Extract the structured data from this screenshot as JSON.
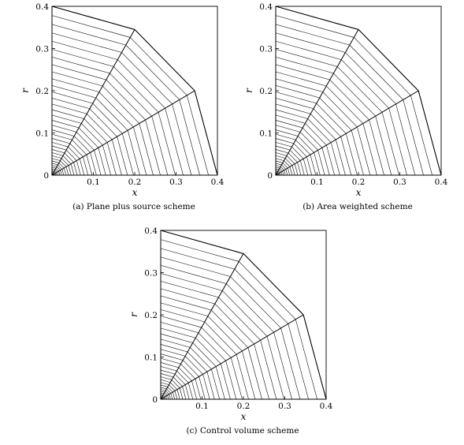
{
  "panels": [
    {
      "id": "a",
      "caption": "(a) Plane plus source scheme"
    },
    {
      "id": "b",
      "caption": "(b) Area weighted scheme"
    },
    {
      "id": "c",
      "caption": "(c) Control volume scheme"
    }
  ],
  "axes": {
    "xlabel": "x",
    "ylabel": "r",
    "x_ticks": [
      "0.1",
      "0.2",
      "0.3",
      "0.4"
    ],
    "y_ticks": [
      "0",
      "0.1",
      "0.2",
      "0.3",
      "0.4"
    ],
    "xlim": [
      0,
      0.4
    ],
    "ylim": [
      0,
      0.4
    ]
  },
  "mesh": {
    "origin": [
      0,
      0
    ],
    "outer_boundary": [
      [
        0,
        0.4
      ],
      [
        0.2,
        0.345
      ],
      [
        0.345,
        0.2
      ],
      [
        0.4,
        0
      ]
    ],
    "radial_line_count": 4,
    "grid_lines_per_block": 40,
    "line_color": "#000000"
  }
}
